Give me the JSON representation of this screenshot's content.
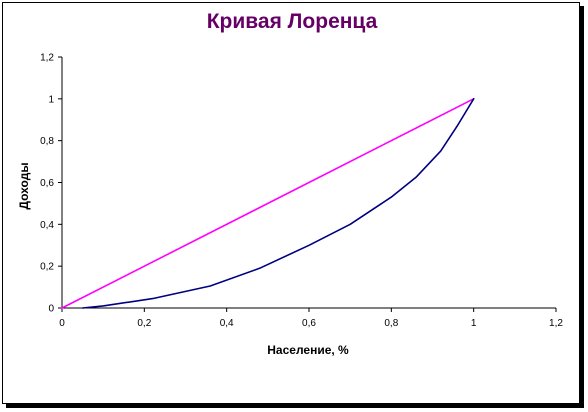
{
  "chart_data": {
    "type": "line",
    "title": "Кривая Лоренца",
    "title_color": "#660066",
    "xlabel": "Население, %",
    "ylabel": "Доходы",
    "xlim": [
      0,
      1.2
    ],
    "ylim": [
      0,
      1.2
    ],
    "x_ticks": [
      "0",
      "0,2",
      "0,4",
      "0,6",
      "0,8",
      "1",
      "1,2"
    ],
    "y_ticks": [
      "0",
      "0,2",
      "0,4",
      "0,6",
      "0,8",
      "1",
      "1,2"
    ],
    "grid": false,
    "legend": "none",
    "series": [
      {
        "color": "#ff00ff",
        "x": [
          0,
          1
        ],
        "y": [
          0,
          1
        ]
      },
      {
        "color": "#000080",
        "x": [
          0.05,
          0.1,
          0.22,
          0.36,
          0.48,
          0.6,
          0.7,
          0.8,
          0.86,
          0.92,
          0.96,
          1.0
        ],
        "y": [
          0.0,
          0.01,
          0.045,
          0.105,
          0.19,
          0.3,
          0.4,
          0.53,
          0.625,
          0.75,
          0.87,
          1.0
        ]
      }
    ]
  }
}
